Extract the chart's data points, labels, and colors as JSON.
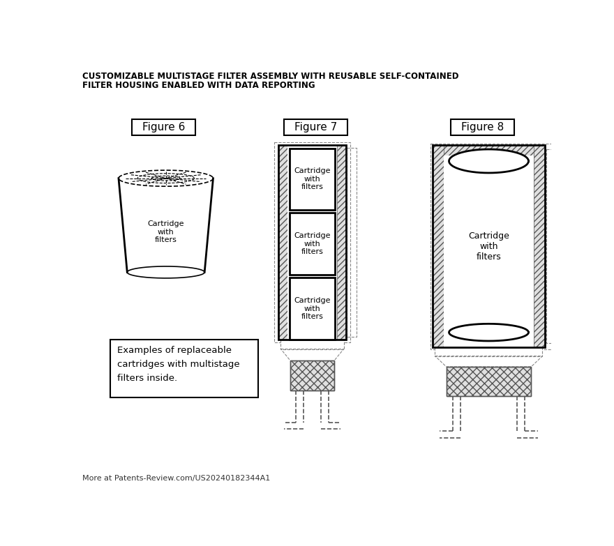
{
  "title_line1": "CUSTOMIZABLE MULTISTAGE FILTER ASSEMBLY WITH REUSABLE SELF-CONTAINED",
  "title_line2": "FILTER HOUSING ENABLED WITH DATA REPORTING",
  "footer": "More at Patents-Review.com/US20240182344A1",
  "fig6_label": "Figure 6",
  "fig7_label": "Figure 7",
  "fig8_label": "Figure 8",
  "cartridge_label": "Cartridge\nwith\nfilters",
  "note_text": "Examples of replaceable\ncartridges with multistage\nfilters inside.",
  "bg_color": "#ffffff",
  "line_color": "#000000"
}
